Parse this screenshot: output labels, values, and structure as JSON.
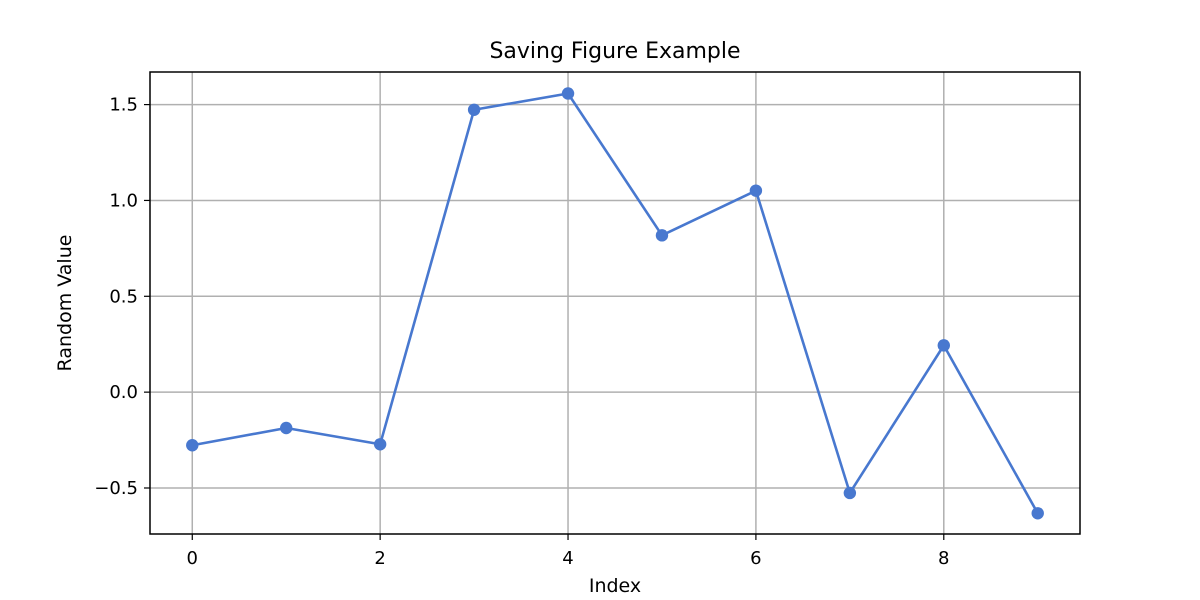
{
  "chart_data": {
    "type": "line",
    "title": "Saving Figure Example",
    "xlabel": "Index",
    "ylabel": "Random Value",
    "x": [
      0,
      1,
      2,
      3,
      4,
      5,
      6,
      7,
      8,
      9
    ],
    "series": [
      {
        "values": [
          -0.277,
          -0.187,
          -0.272,
          1.473,
          1.558,
          0.818,
          1.051,
          -0.526,
          0.244,
          -0.632
        ],
        "color": "#4878cf"
      }
    ],
    "xlim": [
      -0.45,
      9.45
    ],
    "ylim": [
      -0.74,
      1.67
    ],
    "xticks": [
      0,
      2,
      4,
      6,
      8
    ],
    "xtick_labels": [
      "0",
      "2",
      "4",
      "6",
      "8"
    ],
    "yticks": [
      -0.5,
      0.0,
      0.5,
      1.0,
      1.5
    ],
    "ytick_labels": [
      "−0.5",
      "0.0",
      "0.5",
      "1.0",
      "1.5"
    ],
    "grid": true,
    "marker": "circle"
  }
}
